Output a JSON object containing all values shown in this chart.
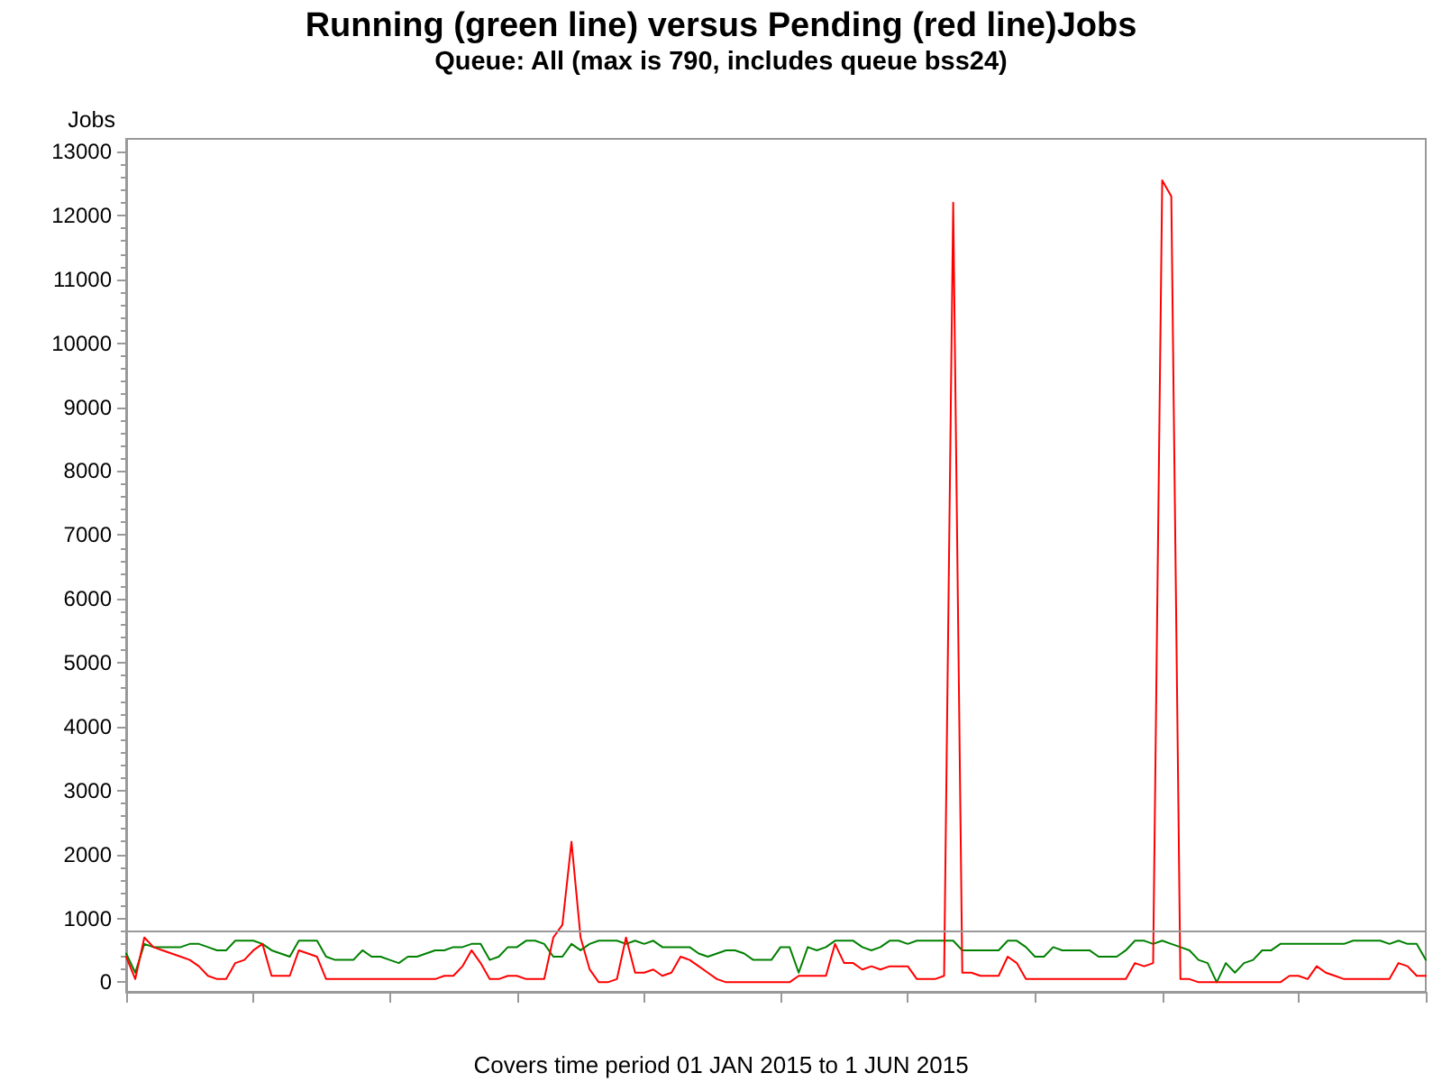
{
  "chart_data": {
    "type": "line",
    "title": "Running (green line) versus Pending (red line)Jobs",
    "subtitle": "Queue: All (max is 790, includes queue bss24)",
    "ylabel": "Jobs",
    "annotations": [
      "Covers time period 01 JAN 2015 to 1 JUN 2015"
    ],
    "categories": [
      null,
      null,
      null,
      null,
      null,
      null,
      null,
      null,
      null,
      null,
      null,
      null,
      null,
      null,
      null,
      null,
      null,
      null,
      null,
      null,
      null,
      null,
      null,
      null,
      null,
      null,
      null,
      null,
      null,
      null,
      null,
      null,
      null,
      null,
      null,
      null,
      null,
      null,
      null,
      null,
      null,
      null,
      null,
      null,
      null,
      null,
      null,
      null,
      null,
      null,
      null,
      null,
      null,
      null,
      null,
      null,
      null,
      null,
      null,
      null,
      null,
      null,
      null,
      null,
      null,
      null,
      null,
      null,
      null,
      null,
      null,
      null,
      null,
      null,
      null,
      null,
      null,
      null,
      null,
      null,
      null,
      null,
      null,
      null,
      null,
      null,
      null,
      null,
      null,
      null,
      null,
      null,
      null,
      null,
      null,
      null,
      null,
      null,
      null,
      null,
      null,
      null,
      null,
      null,
      null,
      null,
      null,
      null,
      null,
      null,
      null,
      null,
      null,
      null,
      null,
      null,
      null,
      null,
      null,
      null,
      null,
      null,
      null,
      null,
      null,
      null,
      null,
      null,
      null,
      null,
      null,
      null,
      null,
      null,
      null,
      null,
      null,
      null,
      null,
      null,
      null,
      null,
      null,
      null
    ],
    "series": [
      {
        "color": "#008000",
        "values": [
          450,
          150,
          600,
          550,
          550,
          550,
          550,
          600,
          600,
          550,
          500,
          500,
          650,
          650,
          650,
          600,
          500,
          450,
          400,
          650,
          650,
          650,
          400,
          350,
          350,
          350,
          500,
          400,
          400,
          350,
          300,
          400,
          400,
          450,
          500,
          500,
          550,
          550,
          600,
          600,
          350,
          400,
          550,
          550,
          650,
          650,
          600,
          400,
          400,
          600,
          500,
          600,
          650,
          650,
          650,
          600,
          650,
          600,
          650,
          550,
          550,
          550,
          550,
          450,
          400,
          450,
          500,
          500,
          450,
          350,
          350,
          350,
          550,
          550,
          150,
          550,
          500,
          550,
          650,
          650,
          650,
          550,
          500,
          550,
          650,
          650,
          600,
          650,
          650,
          650,
          650,
          650,
          500,
          500,
          500,
          500,
          500,
          650,
          650,
          550,
          400,
          400,
          550,
          500,
          500,
          500,
          500,
          400,
          400,
          400,
          500,
          650,
          650,
          600,
          650,
          600,
          550,
          500,
          350,
          300,
          0,
          300,
          150,
          300,
          350,
          500,
          500,
          600,
          600,
          600,
          600,
          600,
          600,
          600,
          600,
          650,
          650,
          650,
          650,
          600,
          650,
          600,
          600,
          350
        ]
      },
      {
        "color": "#ff0000",
        "values": [
          400,
          50,
          700,
          550,
          500,
          450,
          400,
          350,
          250,
          100,
          50,
          50,
          300,
          350,
          500,
          600,
          100,
          100,
          100,
          500,
          450,
          400,
          50,
          50,
          50,
          50,
          50,
          50,
          50,
          50,
          50,
          50,
          50,
          50,
          50,
          100,
          100,
          250,
          500,
          300,
          50,
          50,
          100,
          100,
          50,
          50,
          50,
          700,
          900,
          2200,
          700,
          200,
          0,
          0,
          50,
          700,
          150,
          150,
          200,
          100,
          150,
          400,
          350,
          250,
          150,
          50,
          0,
          0,
          0,
          0,
          0,
          0,
          0,
          0,
          100,
          100,
          100,
          100,
          600,
          300,
          300,
          200,
          250,
          200,
          250,
          250,
          250,
          50,
          50,
          50,
          100,
          12200,
          150,
          150,
          100,
          100,
          100,
          400,
          300,
          50,
          50,
          50,
          50,
          50,
          50,
          50,
          50,
          50,
          50,
          50,
          50,
          300,
          250,
          300,
          12550,
          12300,
          50,
          50,
          0,
          0,
          0,
          0,
          0,
          0,
          0,
          0,
          0,
          0,
          100,
          100,
          50,
          250,
          150,
          100,
          50,
          50,
          50,
          50,
          50,
          50,
          300,
          250,
          100,
          100
        ]
      }
    ],
    "ylim": [
      -150,
      13200
    ],
    "yticks": [
      0,
      {
        "value": 200,
        "label": null
      },
      {
        "value": 400,
        "label": null
      },
      {
        "value": 600,
        "label": null
      },
      {
        "value": 800,
        "label": null
      },
      1000,
      {
        "value": 1200,
        "label": null
      },
      {
        "value": 1400,
        "label": null
      },
      {
        "value": 1600,
        "label": null
      },
      {
        "value": 1800,
        "label": null
      },
      2000,
      {
        "value": 2200,
        "label": null
      },
      {
        "value": 2400,
        "label": null
      },
      {
        "value": 2600,
        "label": null
      },
      {
        "value": 2800,
        "label": null
      },
      3000,
      {
        "value": 3200,
        "label": null
      },
      {
        "value": 3400,
        "label": null
      },
      {
        "value": 3600,
        "label": null
      },
      {
        "value": 3800,
        "label": null
      },
      4000,
      {
        "value": 4200,
        "label": null
      },
      {
        "value": 4400,
        "label": null
      },
      {
        "value": 4600,
        "label": null
      },
      {
        "value": 4800,
        "label": null
      },
      5000,
      {
        "value": 5200,
        "label": null
      },
      {
        "value": 5400,
        "label": null
      },
      {
        "value": 5600,
        "label": null
      },
      {
        "value": 5800,
        "label": null
      },
      6000,
      {
        "value": 6200,
        "label": null
      },
      {
        "value": 6400,
        "label": null
      },
      {
        "value": 6600,
        "label": null
      },
      {
        "value": 6800,
        "label": null
      },
      7000,
      {
        "value": 7200,
        "label": null
      },
      {
        "value": 7400,
        "label": null
      },
      {
        "value": 7600,
        "label": null
      },
      {
        "value": 7800,
        "label": null
      },
      8000,
      {
        "value": 8200,
        "label": null
      },
      {
        "value": 8400,
        "label": null
      },
      {
        "value": 8600,
        "label": null
      },
      {
        "value": 8800,
        "label": null
      },
      9000,
      {
        "value": 9200,
        "label": null
      },
      {
        "value": 9400,
        "label": null
      },
      {
        "value": 9600,
        "label": null
      },
      {
        "value": 9800,
        "label": null
      },
      10000,
      {
        "value": 10200,
        "label": null
      },
      {
        "value": 10400,
        "label": null
      },
      {
        "value": 10600,
        "label": null
      },
      {
        "value": 10800,
        "label": null
      },
      11000,
      {
        "value": 11200,
        "label": null
      },
      {
        "value": 11400,
        "label": null
      },
      {
        "value": 11600,
        "label": null
      },
      {
        "value": 11800,
        "label": null
      },
      12000,
      {
        "value": 12200,
        "label": null
      },
      {
        "value": 12400,
        "label": null
      },
      {
        "value": 12600,
        "label": null
      },
      {
        "value": 12800,
        "label": null
      },
      13000
    ],
    "ref_lines": [
      {
        "axis": "y",
        "value": 790,
        "color": "#999999"
      }
    ],
    "grid": false,
    "marker": "none",
    "line_style": "solid"
  }
}
